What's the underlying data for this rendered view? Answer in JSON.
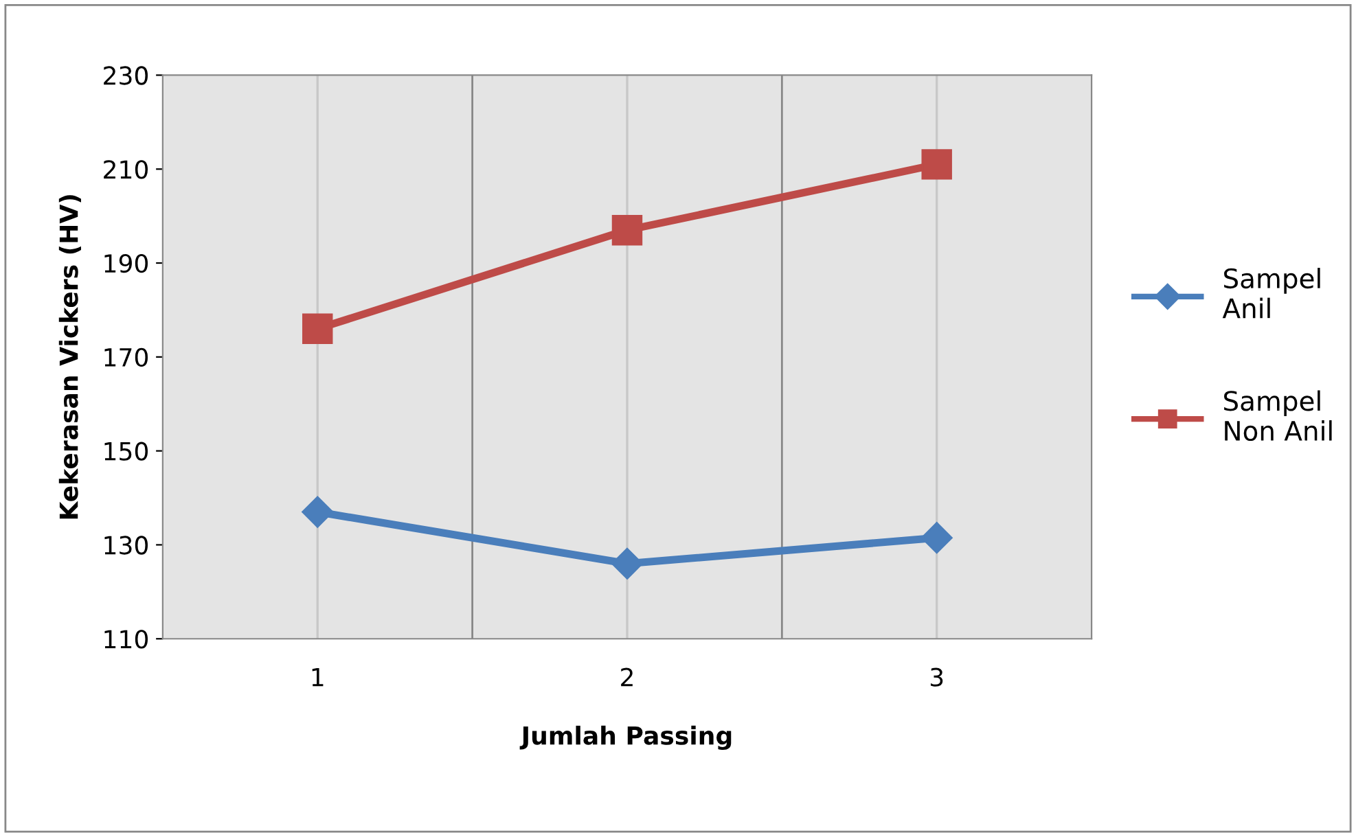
{
  "chart_data": {
    "type": "line",
    "xlabel": "Jumlah Passing",
    "ylabel": "Kekerasan Vickers (HV)",
    "categories": [
      "1",
      "2",
      "3"
    ],
    "series": [
      {
        "name": "Sampel\nAnil",
        "color": "#4a7ebb",
        "marker": "diamond",
        "values": [
          137,
          126,
          131.5
        ]
      },
      {
        "name": "Sampel\nNon Anil",
        "color": "#be4b48",
        "marker": "square",
        "values": [
          176,
          197,
          211
        ]
      }
    ],
    "ylim": [
      110,
      230
    ],
    "yticks": [
      110,
      130,
      150,
      170,
      190,
      210,
      230
    ],
    "grid": "x",
    "legend": "right"
  }
}
